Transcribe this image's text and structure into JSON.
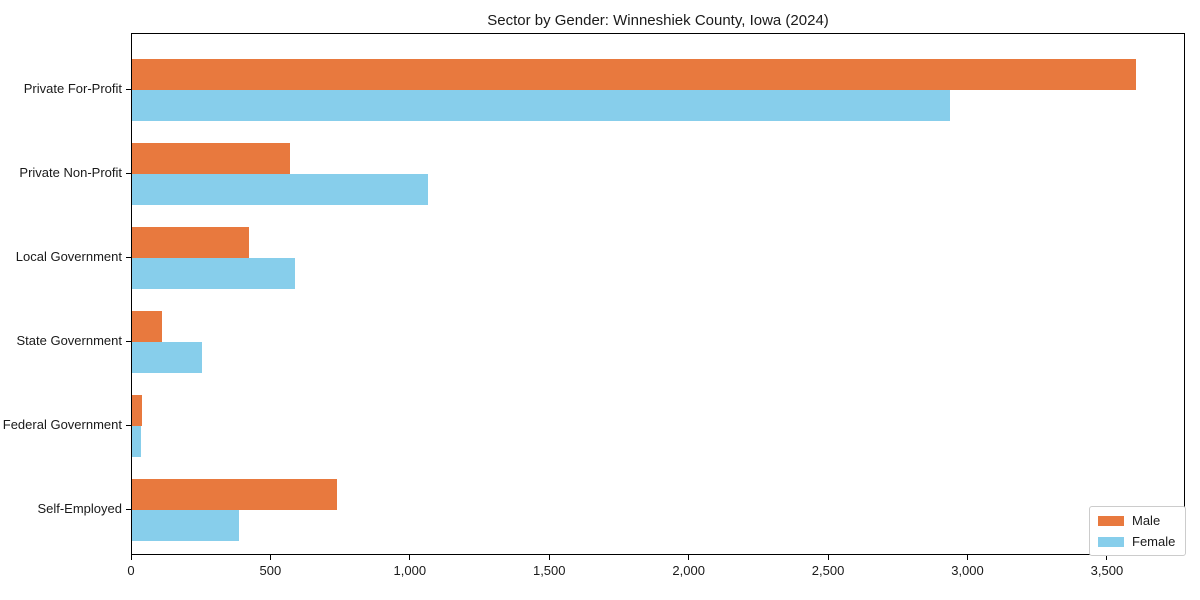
{
  "chart_data": {
    "type": "bar",
    "orientation": "horizontal",
    "title": "Sector by Gender: Winneshiek County, Iowa (2024)",
    "xlabel": "",
    "ylabel": "",
    "categories": [
      "Private For-Profit",
      "Private Non-Profit",
      "Local Government",
      "State Government",
      "Federal Government",
      "Self-Employed"
    ],
    "series": [
      {
        "name": "Male",
        "color": "#e8793e",
        "values": [
          3600,
          567,
          420,
          107,
          36,
          735
        ]
      },
      {
        "name": "Female",
        "color": "#87ceeb",
        "values": [
          2934,
          1060,
          585,
          251,
          32,
          384
        ]
      }
    ],
    "xlim": [
      0,
      3780
    ],
    "xticks": [
      0,
      500,
      1000,
      1500,
      2000,
      2500,
      3000,
      3500
    ],
    "xtick_labels": [
      "0",
      "500",
      "1,000",
      "1,500",
      "2,000",
      "2,500",
      "3,000",
      "3,500"
    ],
    "legend": {
      "position": "lower-right"
    },
    "grid": false,
    "colors": {
      "spine": "#000000",
      "text": "#1a1a1a",
      "legend_border": "#cccccc",
      "background": "#ffffff"
    }
  }
}
